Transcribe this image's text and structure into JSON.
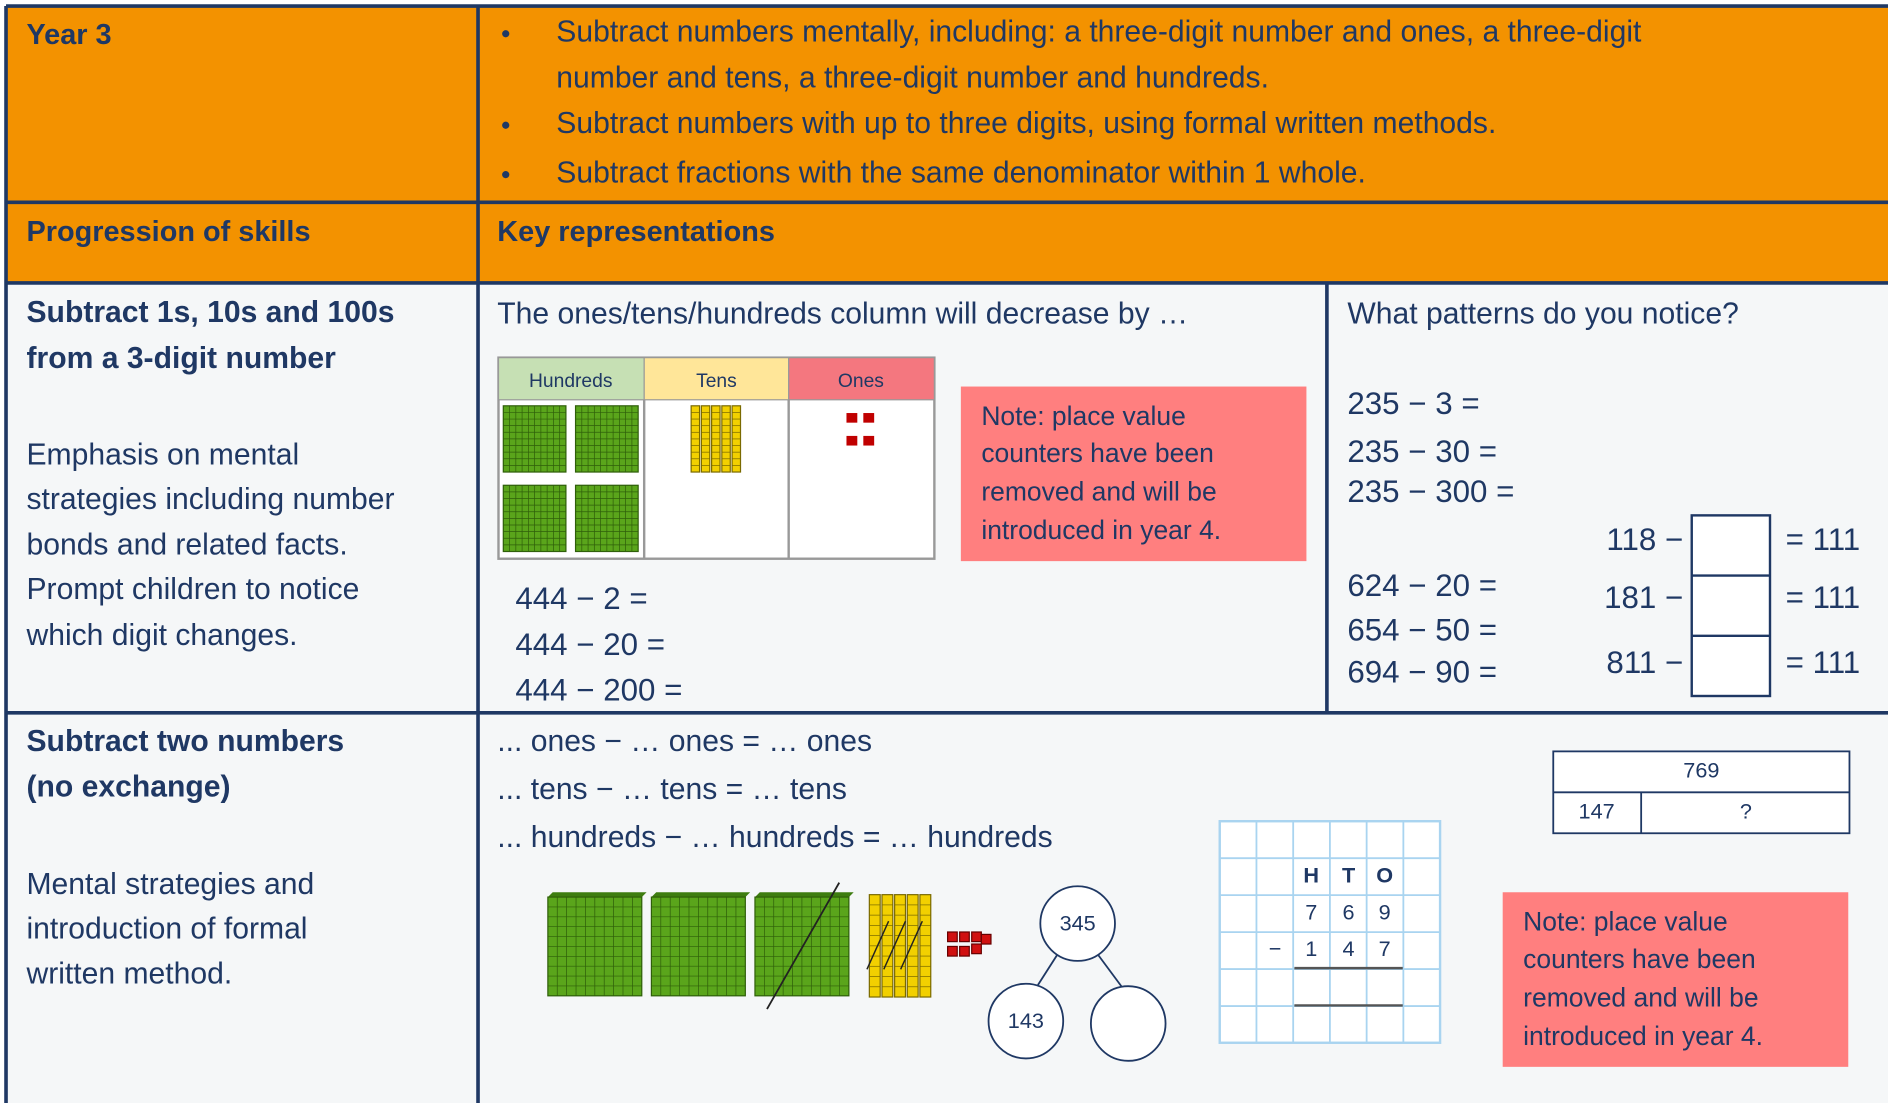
{
  "header": {
    "year": "Year 3",
    "bullets": [
      [
        "Subtract numbers mentally, including: a three-digit number and ones, a three-digit",
        "number and tens, a three-digit number and hundreds."
      ],
      [
        "Subtract numbers with up to three digits, using formal written methods."
      ],
      [
        "Subtract fractions with the same denominator within 1 whole."
      ]
    ]
  },
  "headings": {
    "progression": "Progression of skills",
    "representations": "Key representations"
  },
  "rows": [
    {
      "skill_title": [
        "Subtract 1s, 10s and 100s",
        "from a 3-digit number"
      ],
      "description": [
        "Emphasis on mental",
        "strategies including number",
        "bonds and related facts.",
        "Prompt children to notice",
        "which digit changes."
      ],
      "prompt": "The ones/tens/hundreds column will decrease by …",
      "place_value_headers": [
        "Hundreds",
        "Tens",
        "Ones"
      ],
      "equations": [
        "444 − 2 =",
        "444 − 20 =",
        "444 − 200 ="
      ],
      "note": [
        "Note: place value",
        "counters have been",
        "removed and will be",
        "introduced in year 4."
      ],
      "patterns_prompt": "What patterns do you notice?",
      "pattern_equations": [
        "235 − 3 =",
        "235 − 30 =",
        "235 − 300 =",
        "624 − 20 =",
        "654 − 50 =",
        "694 − 90 ="
      ],
      "missing_number": [
        {
          "left": "118 −",
          "right": "= 111"
        },
        {
          "left": "181 −",
          "right": "= 111"
        },
        {
          "left": "811 −",
          "right": "= 111"
        }
      ]
    },
    {
      "skill_title": [
        "Subtract  two  numbers",
        "(no exchange)"
      ],
      "description": [
        "Mental  strategies  and",
        "introduction of formal",
        "written method."
      ],
      "sentences": [
        "... ones − … ones = … ones",
        "... tens − … tens = … tens",
        "... hundreds − … hundreds = … hundreds"
      ],
      "part_whole": {
        "whole": "345",
        "part": "143"
      },
      "column_method": {
        "headers": [
          "H",
          "T",
          "O"
        ],
        "first": [
          "7",
          "6",
          "9"
        ],
        "operator": "−",
        "second": [
          "1",
          "4",
          "7"
        ]
      },
      "bar_model": {
        "whole": "769",
        "parts": [
          "147",
          "?"
        ]
      },
      "note": [
        "Note: place value",
        "counters have been",
        "removed and will be",
        "introduced in year 4."
      ]
    }
  ]
}
